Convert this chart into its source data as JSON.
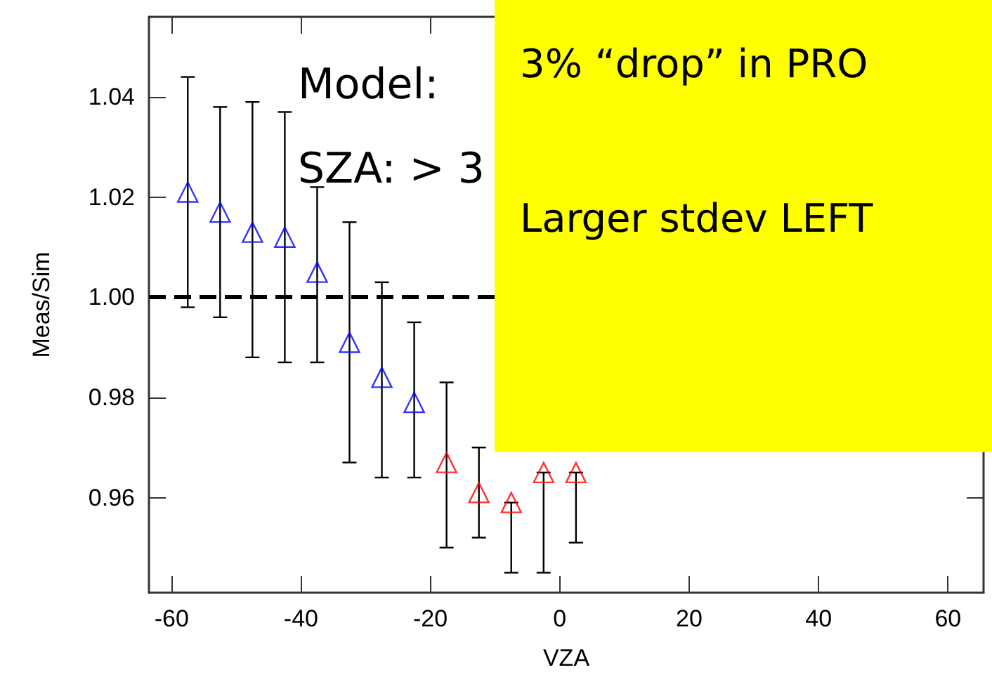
{
  "chart_data": {
    "type": "scatter",
    "xlabel": "VZA",
    "ylabel": "Meas/Sim",
    "xlim": [
      -63.5,
      65.5
    ],
    "ylim": [
      0.941,
      1.056
    ],
    "xticks": [
      -60,
      -40,
      -20,
      0,
      20,
      40,
      60
    ],
    "yticks": [
      {
        "value": 0.96,
        "label": "0.96"
      },
      {
        "value": 0.98,
        "label": "0.98"
      },
      {
        "value": 1.0,
        "label": "1.00"
      },
      {
        "value": 1.02,
        "label": "1.02"
      },
      {
        "value": 1.04,
        "label": "1.04"
      }
    ],
    "marker": "triangle",
    "series": [
      {
        "color": "#0000ff",
        "x": [
          -57.5,
          -52.5,
          -47.5,
          -42.5,
          -37.5,
          -32.5,
          -27.5,
          -22.5
        ],
        "values": [
          1.021,
          1.017,
          1.013,
          1.012,
          1.005,
          0.991,
          0.984,
          0.979
        ],
        "errors": [
          [
            0.998,
            1.044
          ],
          [
            0.996,
            1.038
          ],
          [
            0.988,
            1.039
          ],
          [
            0.987,
            1.037
          ],
          [
            0.987,
            1.022
          ],
          [
            0.967,
            1.015
          ],
          [
            0.964,
            1.003
          ],
          [
            0.964,
            0.995
          ]
        ]
      },
      {
        "color": "#ff0000",
        "x": [
          -17.5,
          -12.5,
          -7.5,
          -2.5,
          2.5
        ],
        "values": [
          0.967,
          0.961,
          0.959,
          0.965,
          0.965
        ],
        "errors": [
          [
            0.95,
            0.983
          ],
          [
            0.952,
            0.97
          ],
          [
            0.945,
            0.959
          ],
          [
            0.945,
            0.965
          ],
          [
            0.951,
            0.965
          ]
        ]
      }
    ],
    "ref_lines": [
      {
        "axis": "y",
        "value": 1.0,
        "line_style": "dashed",
        "color": "#000000"
      }
    ],
    "annotations": [
      "Model:",
      "SZA: > 3",
      "3% “drop” in PRO",
      "Larger stdev LEFT"
    ]
  }
}
